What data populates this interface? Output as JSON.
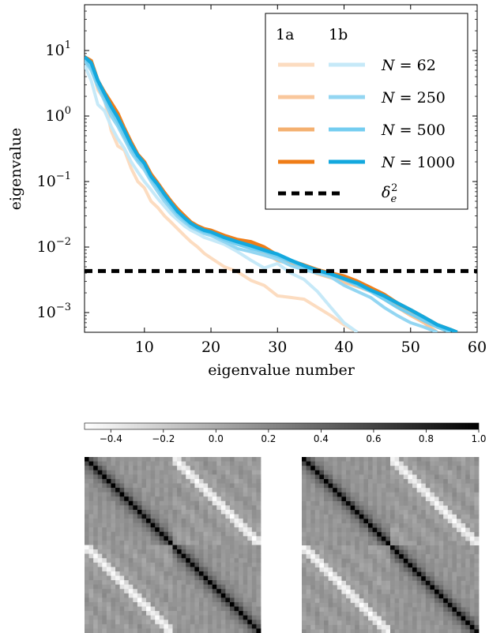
{
  "chart_data": [
    {
      "type": "line",
      "xlabel": "eigenvalue number",
      "ylabel": "eigenvalue",
      "xlim": [
        1,
        60
      ],
      "ylim": [
        0.0005,
        50
      ],
      "yscale": "log",
      "x_ticks": [
        10,
        20,
        30,
        40,
        50,
        60
      ],
      "y_ticks": [
        {
          "value": 0.001,
          "base": "10",
          "exp": "−3"
        },
        {
          "value": 0.01,
          "base": "10",
          "exp": "−2"
        },
        {
          "value": 0.1,
          "base": "10",
          "exp": "−1"
        },
        {
          "value": 1,
          "base": "10",
          "exp": "0"
        },
        {
          "value": 10,
          "base": "10",
          "exp": "1"
        }
      ],
      "grid": false,
      "legend_position": "top-right",
      "legend_headers": [
        "1a",
        "1b"
      ],
      "legend_rows": [
        {
          "label": "N = 62",
          "color_a": "#fcdcc0",
          "color_b": "#c6e9f8"
        },
        {
          "label": "N = 250",
          "color_a": "#f9c79c",
          "color_b": "#93d6f2"
        },
        {
          "label": "N = 500",
          "color_a": "#f4b070",
          "color_b": "#74cdf0"
        },
        {
          "label": "N = 1000",
          "color_a": "#ef7d17",
          "color_b": "#13a8de"
        }
      ],
      "threshold_label": "δ_e²",
      "threshold_value": 0.0043,
      "series": [
        {
          "group": "1a",
          "n": 62,
          "color": "#fcdcc0",
          "x": [
            1,
            2,
            3,
            4,
            5,
            6,
            7,
            8,
            9,
            10,
            11,
            12,
            13,
            14,
            15,
            16,
            17,
            18,
            19,
            20,
            22,
            24,
            26,
            28,
            30,
            32,
            34,
            36,
            38,
            40,
            42
          ],
          "y": [
            7,
            6,
            2.5,
            1.8,
            0.6,
            0.35,
            0.3,
            0.16,
            0.1,
            0.08,
            0.05,
            0.04,
            0.03,
            0.024,
            0.019,
            0.015,
            0.012,
            0.01,
            0.008,
            0.0068,
            0.005,
            0.0042,
            0.0031,
            0.0026,
            0.0018,
            0.0017,
            0.0016,
            0.0012,
            0.0009,
            0.00065,
            0.0005
          ]
        },
        {
          "group": "1a",
          "n": 250,
          "color": "#f9c79c",
          "x": [
            1,
            2,
            3,
            4,
            5,
            6,
            7,
            8,
            9,
            10,
            11,
            12,
            13,
            14,
            15,
            16,
            17,
            18,
            19,
            20,
            22,
            24,
            26,
            28,
            30,
            32,
            34,
            36,
            38,
            40,
            42,
            44,
            46,
            48,
            50,
            52,
            54
          ],
          "y": [
            7,
            5.5,
            3,
            1.9,
            1.2,
            0.8,
            0.5,
            0.3,
            0.21,
            0.16,
            0.11,
            0.075,
            0.055,
            0.04,
            0.031,
            0.025,
            0.021,
            0.019,
            0.017,
            0.016,
            0.013,
            0.011,
            0.0098,
            0.0082,
            0.0062,
            0.0055,
            0.0048,
            0.0039,
            0.0034,
            0.0029,
            0.0025,
            0.0021,
            0.0016,
            0.0012,
            0.0009,
            0.0007,
            0.0005
          ]
        },
        {
          "group": "1a",
          "n": 500,
          "color": "#f4b070",
          "x": [
            1,
            2,
            3,
            4,
            5,
            6,
            7,
            8,
            9,
            10,
            11,
            12,
            13,
            14,
            15,
            16,
            17,
            18,
            19,
            20,
            22,
            24,
            26,
            28,
            30,
            32,
            34,
            36,
            38,
            40,
            42,
            44,
            46,
            48,
            50,
            52,
            54,
            56
          ],
          "y": [
            8,
            6,
            3.2,
            2.1,
            1.4,
            0.9,
            0.55,
            0.35,
            0.24,
            0.18,
            0.12,
            0.085,
            0.06,
            0.045,
            0.034,
            0.027,
            0.022,
            0.02,
            0.018,
            0.017,
            0.014,
            0.012,
            0.011,
            0.009,
            0.0068,
            0.0058,
            0.005,
            0.0043,
            0.0037,
            0.0032,
            0.0027,
            0.0022,
            0.0017,
            0.0013,
            0.001,
            0.00075,
            0.0006,
            0.0005
          ]
        },
        {
          "group": "1a",
          "n": 1000,
          "color": "#ef7d17",
          "x": [
            1,
            2,
            3,
            4,
            5,
            6,
            7,
            8,
            9,
            10,
            11,
            12,
            13,
            14,
            15,
            16,
            17,
            18,
            19,
            20,
            22,
            24,
            26,
            28,
            30,
            32,
            34,
            36,
            38,
            40,
            42,
            44,
            46,
            48,
            50,
            52,
            54,
            56,
            57
          ],
          "y": [
            8,
            7,
            3.5,
            2.3,
            1.6,
            1.1,
            0.65,
            0.4,
            0.26,
            0.2,
            0.13,
            0.095,
            0.068,
            0.05,
            0.038,
            0.03,
            0.024,
            0.021,
            0.019,
            0.018,
            0.015,
            0.013,
            0.012,
            0.01,
            0.0075,
            0.0062,
            0.0053,
            0.0045,
            0.004,
            0.0036,
            0.003,
            0.0024,
            0.0019,
            0.0014,
            0.0011,
            0.00085,
            0.00065,
            0.00055,
            0.0005
          ]
        },
        {
          "group": "1b",
          "n": 62,
          "color": "#c6e9f8",
          "x": [
            1,
            2,
            3,
            4,
            5,
            6,
            7,
            8,
            9,
            10,
            11,
            12,
            13,
            14,
            15,
            16,
            17,
            18,
            19,
            20,
            22,
            24,
            26,
            28,
            30,
            32,
            34,
            36,
            38,
            40,
            42
          ],
          "y": [
            6,
            3.5,
            1.5,
            1.2,
            0.7,
            0.45,
            0.32,
            0.2,
            0.14,
            0.1,
            0.075,
            0.055,
            0.042,
            0.032,
            0.026,
            0.021,
            0.018,
            0.016,
            0.014,
            0.013,
            0.011,
            0.0085,
            0.0063,
            0.0048,
            0.0056,
            0.004,
            0.0032,
            0.0021,
            0.0012,
            0.0007,
            0.0005
          ]
        },
        {
          "group": "1b",
          "n": 250,
          "color": "#93d6f2",
          "x": [
            1,
            2,
            3,
            4,
            5,
            6,
            7,
            8,
            9,
            10,
            11,
            12,
            13,
            14,
            15,
            16,
            17,
            18,
            19,
            20,
            22,
            24,
            26,
            28,
            30,
            32,
            34,
            36,
            38,
            40,
            42,
            44,
            46,
            48,
            50,
            52,
            54
          ],
          "y": [
            7,
            5,
            2.8,
            1.7,
            1,
            0.7,
            0.45,
            0.28,
            0.2,
            0.15,
            0.1,
            0.07,
            0.05,
            0.038,
            0.029,
            0.024,
            0.02,
            0.018,
            0.016,
            0.015,
            0.012,
            0.0095,
            0.0085,
            0.0075,
            0.0065,
            0.0052,
            0.0045,
            0.004,
            0.0035,
            0.0026,
            0.0021,
            0.0017,
            0.0012,
            0.0009,
            0.0007,
            0.0006,
            0.0005
          ]
        },
        {
          "group": "1b",
          "n": 500,
          "color": "#74cdf0",
          "x": [
            1,
            2,
            3,
            4,
            5,
            6,
            7,
            8,
            9,
            10,
            11,
            12,
            13,
            14,
            15,
            16,
            17,
            18,
            19,
            20,
            22,
            24,
            26,
            28,
            30,
            32,
            34,
            36,
            38,
            40,
            42,
            44,
            46,
            48,
            50,
            52,
            54,
            56
          ],
          "y": [
            7.5,
            5.5,
            3,
            1.9,
            1.2,
            0.8,
            0.5,
            0.32,
            0.22,
            0.17,
            0.11,
            0.08,
            0.057,
            0.042,
            0.032,
            0.026,
            0.021,
            0.019,
            0.017,
            0.016,
            0.013,
            0.011,
            0.0095,
            0.0085,
            0.0072,
            0.006,
            0.005,
            0.0043,
            0.0038,
            0.0032,
            0.0026,
            0.0021,
            0.0016,
            0.0012,
            0.00095,
            0.00075,
            0.0006,
            0.0005
          ]
        },
        {
          "group": "1b",
          "n": 1000,
          "color": "#13a8de",
          "x": [
            1,
            2,
            3,
            4,
            5,
            6,
            7,
            8,
            9,
            10,
            11,
            12,
            13,
            14,
            15,
            16,
            17,
            18,
            19,
            20,
            22,
            24,
            26,
            28,
            30,
            32,
            34,
            36,
            38,
            40,
            42,
            44,
            46,
            48,
            50,
            52,
            54,
            56,
            57
          ],
          "y": [
            8,
            6.5,
            3.5,
            2.2,
            1.4,
            0.95,
            0.6,
            0.37,
            0.25,
            0.19,
            0.12,
            0.09,
            0.064,
            0.047,
            0.035,
            0.028,
            0.023,
            0.02,
            0.018,
            0.017,
            0.014,
            0.012,
            0.0105,
            0.009,
            0.0078,
            0.0063,
            0.0052,
            0.0044,
            0.0039,
            0.0033,
            0.0028,
            0.0022,
            0.0018,
            0.0014,
            0.0011,
            0.00085,
            0.00065,
            0.00055,
            0.0005
          ]
        }
      ]
    },
    {
      "type": "heatmap",
      "colormap": "gray_r",
      "colorbar_range": [
        -0.5,
        1.0
      ],
      "colorbar_ticks": [
        "−0.4",
        "−0.2",
        "0.0",
        "0.2",
        "0.4",
        "0.6",
        "0.8",
        "1.0"
      ],
      "colorbar_tick_values": [
        -0.4,
        -0.2,
        0.0,
        0.2,
        0.4,
        0.6,
        0.8,
        1.0
      ],
      "panels": [
        {
          "grid_size": 40,
          "block_split": 20,
          "diagonal_value": 1.0,
          "off_block_minimum": -0.5,
          "background_value": 0.15
        },
        {
          "grid_size": 40,
          "block_split": 20,
          "diagonal_value": 1.0,
          "off_block_minimum": -0.5,
          "background_value": 0.15
        }
      ]
    }
  ]
}
